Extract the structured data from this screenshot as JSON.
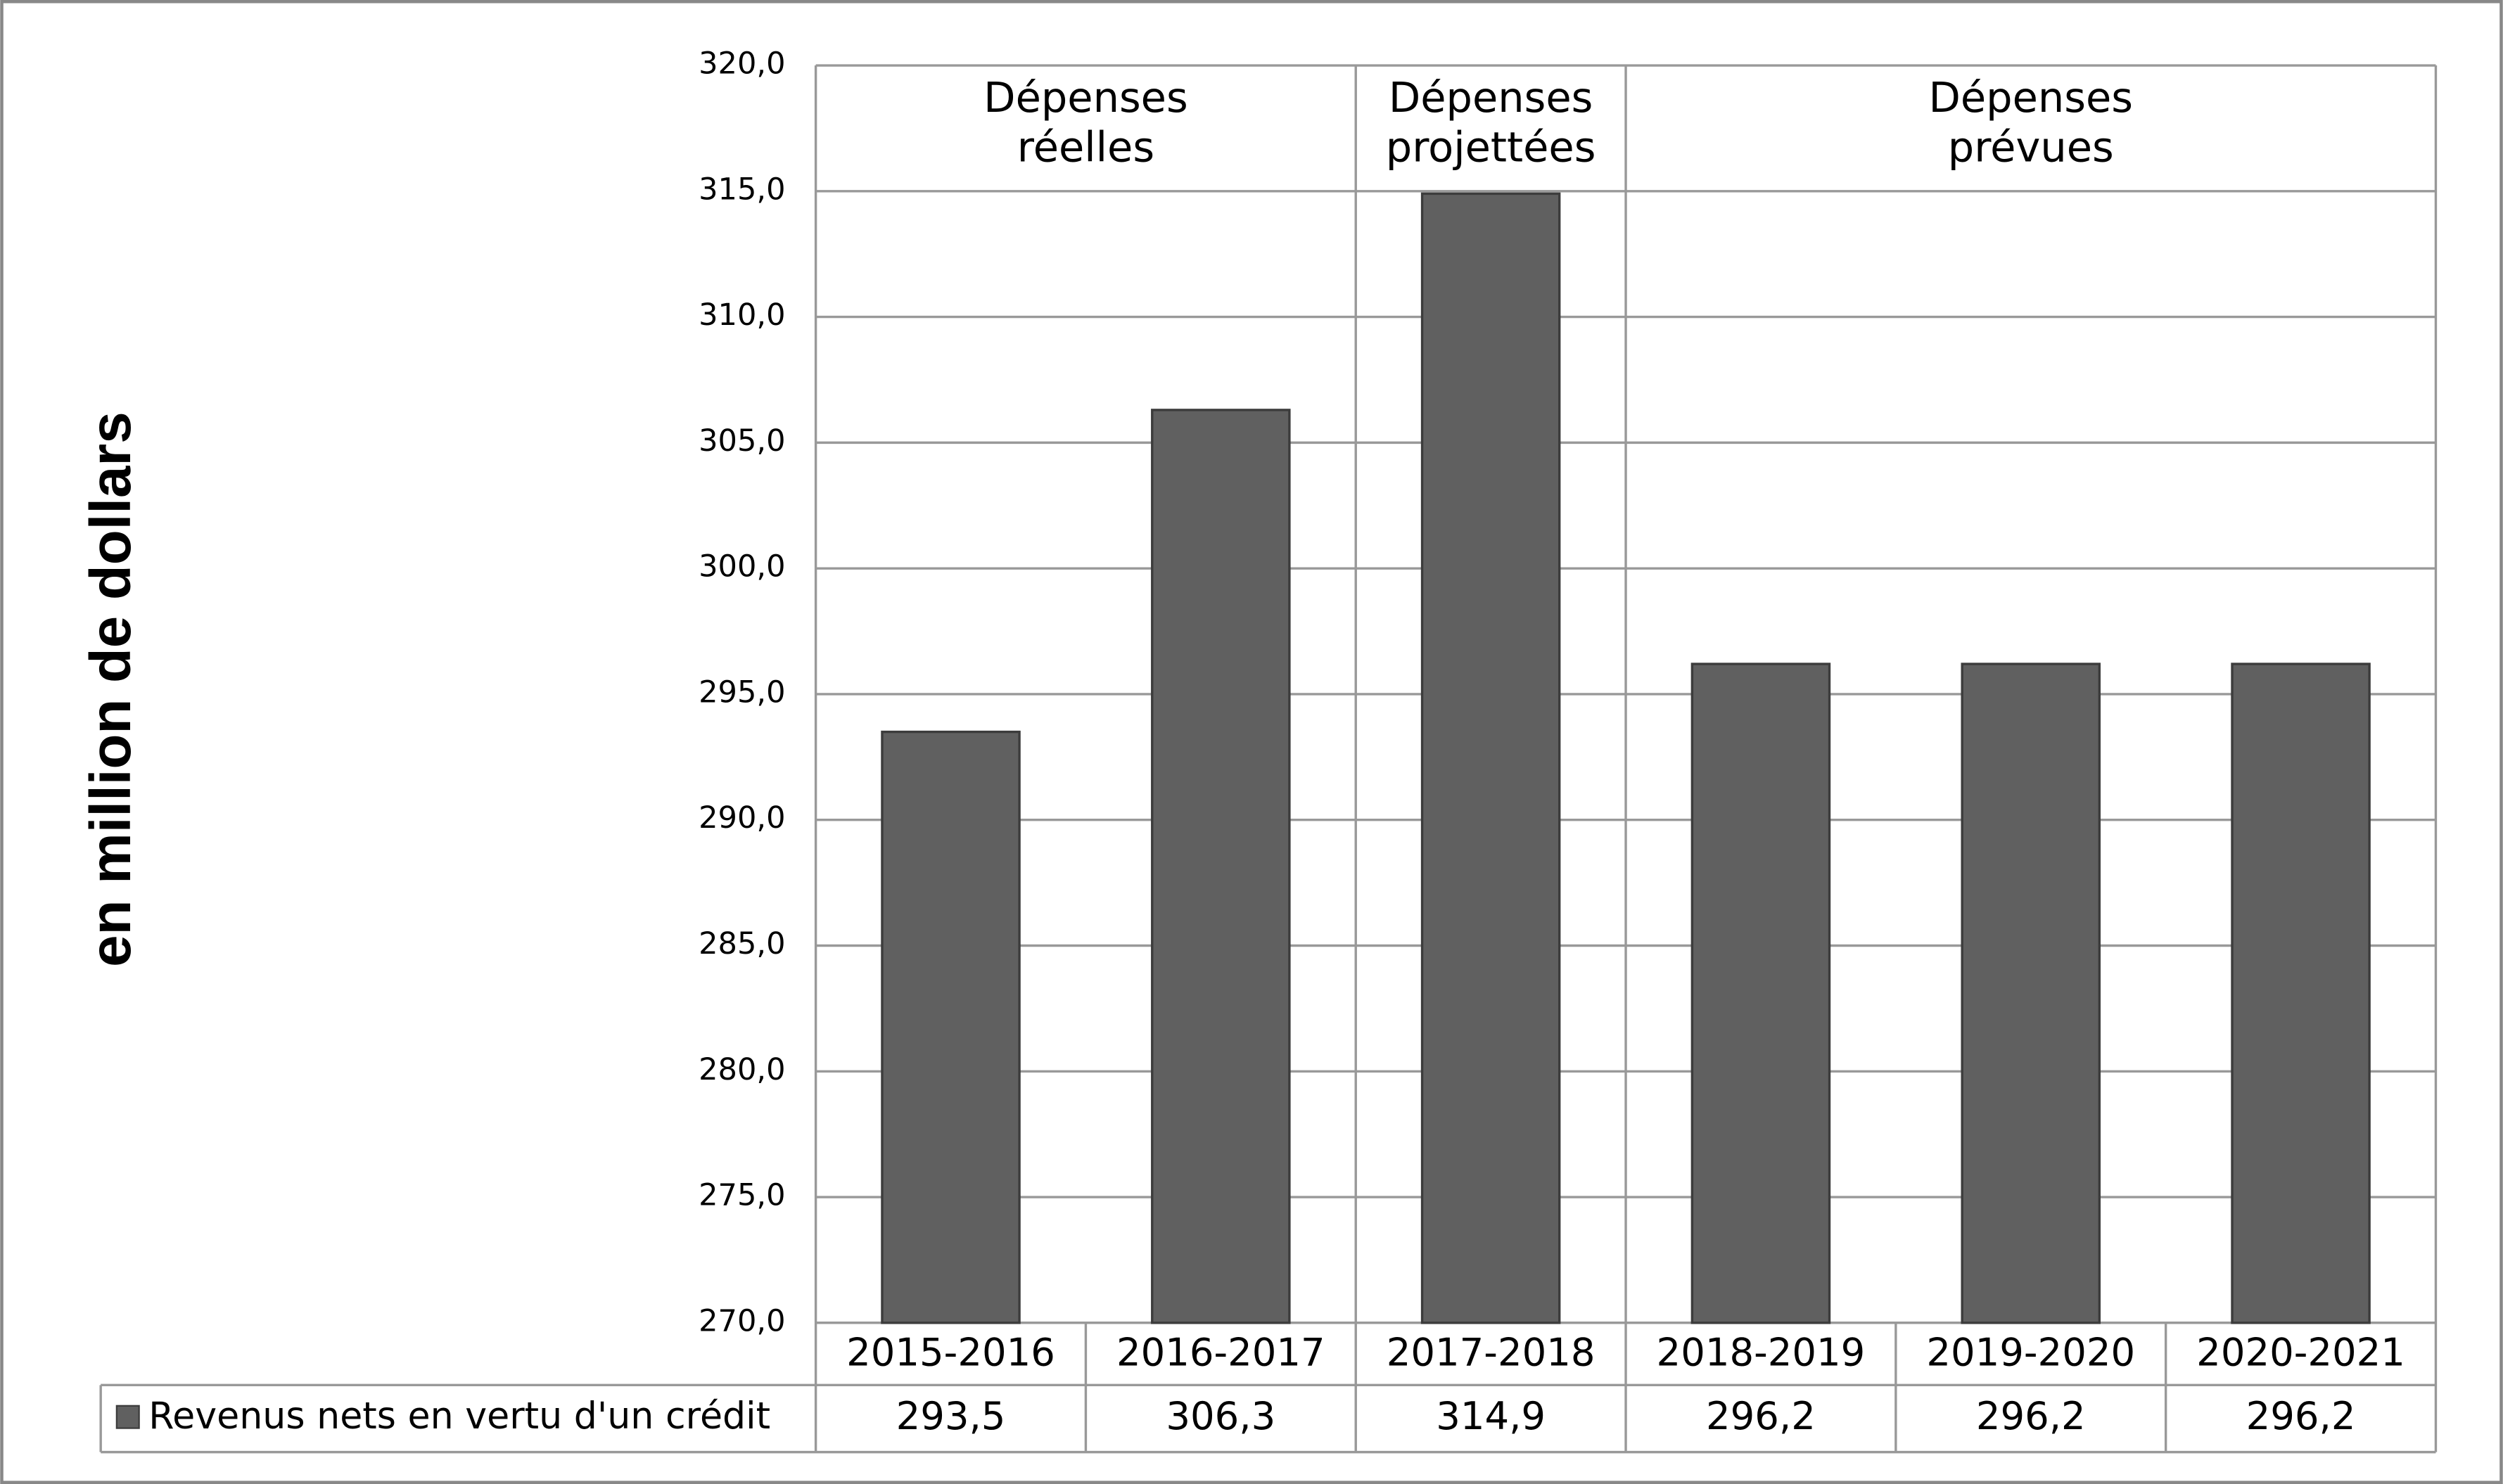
{
  "chart_data": {
    "type": "bar",
    "y_label": "en million de dollars",
    "categories": [
      "2015-2016",
      "2016-2017",
      "2017-2018",
      "2018-2019",
      "2019-2020",
      "2020-2021"
    ],
    "series": [
      {
        "name": "Revenus nets en vertu d'un crédit",
        "color": "#606060",
        "values": [
          293.5,
          306.3,
          314.9,
          296.2,
          296.2,
          296.2
        ],
        "value_labels": [
          "293,5",
          "306,3",
          "314,9",
          "296,2",
          "296,2",
          "296,2"
        ]
      }
    ],
    "groups": [
      {
        "label": [
          "Dépenses",
          "réelles"
        ],
        "categories": [
          "2015-2016",
          "2016-2017"
        ]
      },
      {
        "label": [
          "Dépenses",
          "projettées"
        ],
        "categories": [
          "2017-2018"
        ]
      },
      {
        "label": [
          "Dépenses",
          "prévues"
        ],
        "categories": [
          "2018-2019",
          "2019-2020",
          "2020-2021"
        ]
      }
    ],
    "ylim": [
      270,
      320
    ],
    "yticks": [
      {
        "value": 270,
        "label": "270,0"
      },
      {
        "value": 275,
        "label": "275,0"
      },
      {
        "value": 280,
        "label": "280,0"
      },
      {
        "value": 285,
        "label": "285,0"
      },
      {
        "value": 290,
        "label": "290,0"
      },
      {
        "value": 295,
        "label": "295,0"
      },
      {
        "value": 300,
        "label": "300,0"
      },
      {
        "value": 305,
        "label": "305,0"
      },
      {
        "value": 310,
        "label": "310,0"
      },
      {
        "value": 315,
        "label": "315,0"
      },
      {
        "value": 320,
        "label": "320,0"
      }
    ],
    "grid": true
  }
}
